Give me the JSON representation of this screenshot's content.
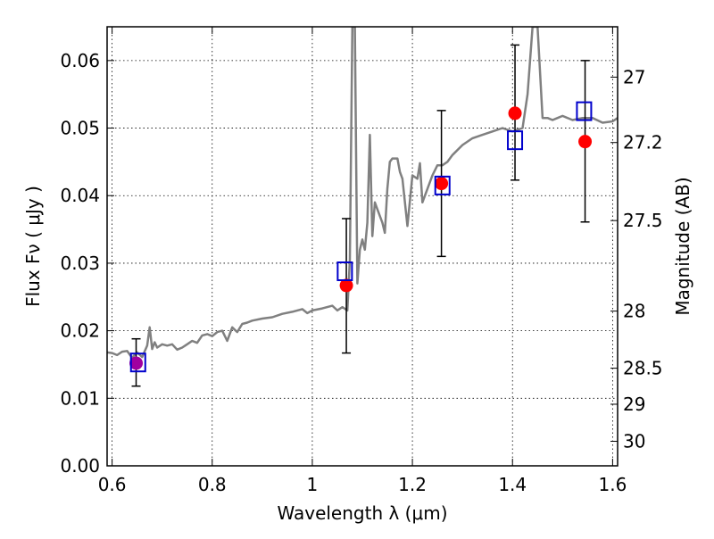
{
  "chart_data": {
    "type": "scatter",
    "xlabel": "Wavelength  λ (μm)",
    "ylabel": "Flux  Fν ( μJy )",
    "ylabel_right": "Magnitude (AB)",
    "xlim": [
      0.59,
      1.61
    ],
    "ylim": [
      0.0,
      0.065
    ],
    "grid": true,
    "x_ticks": [
      0.6,
      0.8,
      1.0,
      1.2,
      1.4,
      1.6
    ],
    "x_tick_labels": [
      "0.6",
      "0.8",
      "1",
      "1.2",
      "1.4",
      "1.6"
    ],
    "y_ticks": [
      0.0,
      0.01,
      0.02,
      0.03,
      0.04,
      0.05,
      0.06
    ],
    "y_tick_labels": [
      "0.00",
      "0.01",
      "0.02",
      "0.03",
      "0.04",
      "0.05",
      "0.06"
    ],
    "mag_ticks": [
      27,
      27.2,
      27.5,
      28,
      28.5,
      29,
      30
    ],
    "mag_tick_labels": [
      "27",
      "27.2",
      "27.5",
      "28",
      "28.5",
      "29",
      "30"
    ],
    "colors": {
      "model": "#808080",
      "observed": "#ff0000",
      "synthetic": "#0000cc",
      "overlap": "#a000a0",
      "errorbar": "#000000",
      "grid": "#000000"
    },
    "series": [
      {
        "kind": "observed",
        "x": [
          0.648,
          1.068,
          1.258,
          1.405,
          1.545
        ],
        "y": [
          0.0152,
          0.0267,
          0.0418,
          0.0522,
          0.048
        ],
        "err_low": [
          0.0118,
          0.0167,
          0.031,
          0.0423,
          0.0361
        ],
        "err_high": [
          0.0188,
          0.0366,
          0.0526,
          0.0623,
          0.06
        ]
      },
      {
        "kind": "synthetic",
        "x": [
          0.652,
          1.065,
          1.26,
          1.405,
          1.543
        ],
        "y": [
          0.0153,
          0.0288,
          0.0415,
          0.0482,
          0.0525
        ]
      },
      {
        "kind": "model",
        "x": [
          0.59,
          0.6,
          0.61,
          0.62,
          0.63,
          0.64,
          0.65,
          0.66,
          0.67,
          0.675,
          0.68,
          0.685,
          0.69,
          0.7,
          0.71,
          0.72,
          0.73,
          0.74,
          0.75,
          0.76,
          0.77,
          0.78,
          0.79,
          0.8,
          0.81,
          0.82,
          0.83,
          0.84,
          0.85,
          0.86,
          0.87,
          0.88,
          0.9,
          0.92,
          0.94,
          0.96,
          0.98,
          0.99,
          1.0,
          1.02,
          1.04,
          1.05,
          1.06,
          1.07,
          1.075,
          1.08,
          1.085,
          1.09,
          1.095,
          1.1,
          1.105,
          1.11,
          1.115,
          1.12,
          1.125,
          1.13,
          1.14,
          1.145,
          1.15,
          1.155,
          1.16,
          1.17,
          1.175,
          1.18,
          1.19,
          1.2,
          1.21,
          1.215,
          1.22,
          1.23,
          1.24,
          1.25,
          1.26,
          1.27,
          1.28,
          1.3,
          1.32,
          1.34,
          1.36,
          1.38,
          1.4,
          1.42,
          1.43,
          1.44,
          1.45,
          1.46,
          1.47,
          1.48,
          1.49,
          1.5,
          1.52,
          1.54,
          1.56,
          1.58,
          1.6,
          1.61
        ],
        "y": [
          0.0168,
          0.0167,
          0.0164,
          0.0169,
          0.017,
          0.016,
          0.0168,
          0.0161,
          0.0178,
          0.0205,
          0.0173,
          0.0183,
          0.0175,
          0.018,
          0.0178,
          0.018,
          0.0172,
          0.0175,
          0.018,
          0.0185,
          0.0182,
          0.0193,
          0.0195,
          0.0192,
          0.0198,
          0.02,
          0.0185,
          0.0205,
          0.0198,
          0.021,
          0.0212,
          0.0215,
          0.0218,
          0.022,
          0.0225,
          0.0228,
          0.0232,
          0.0226,
          0.023,
          0.0233,
          0.0237,
          0.023,
          0.0235,
          0.023,
          0.0305,
          0.065,
          0.065,
          0.027,
          0.032,
          0.0335,
          0.032,
          0.036,
          0.049,
          0.034,
          0.039,
          0.038,
          0.036,
          0.0345,
          0.041,
          0.045,
          0.0455,
          0.0455,
          0.0435,
          0.0425,
          0.0355,
          0.043,
          0.0425,
          0.0448,
          0.039,
          0.041,
          0.043,
          0.0445,
          0.0445,
          0.045,
          0.046,
          0.0475,
          0.0485,
          0.049,
          0.0495,
          0.05,
          0.0495,
          0.05,
          0.055,
          0.065,
          0.065,
          0.0515,
          0.0515,
          0.0512,
          0.0515,
          0.0518,
          0.0512,
          0.0515,
          0.0515,
          0.0508,
          0.051,
          0.0515
        ]
      }
    ]
  }
}
